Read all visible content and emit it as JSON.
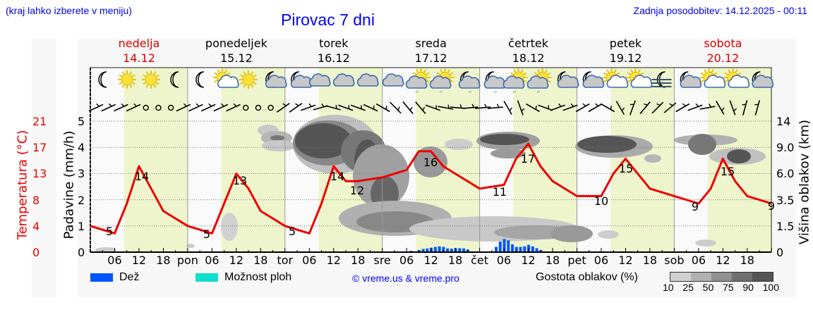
{
  "header": {
    "region_hint": "(kraj lahko izberete v meniju)",
    "title": "Pirovac 7 dni",
    "last_update": "Zadnja posodobitev: 14.12.2025 - 00:11"
  },
  "days": [
    {
      "name": "nedelja",
      "date": "14.12",
      "weekend": true
    },
    {
      "name": "ponedeljek",
      "date": "15.12",
      "weekend": false
    },
    {
      "name": "torek",
      "date": "16.12",
      "weekend": false
    },
    {
      "name": "sreda",
      "date": "17.12",
      "weekend": false
    },
    {
      "name": "četrtek",
      "date": "18.12",
      "weekend": false
    },
    {
      "name": "petek",
      "date": "19.12",
      "weekend": false
    },
    {
      "name": "sobota",
      "date": "20.12",
      "weekend": true
    }
  ],
  "weather_icons": [
    [
      "moon",
      "sun",
      "sun",
      "moon"
    ],
    [
      "moon",
      "sun-cloud",
      "sun",
      "moon-cloud"
    ],
    [
      "moon-cloud",
      "cloud",
      "cloud",
      "cloud"
    ],
    [
      "cloud",
      "sun-cloud-rain",
      "sun-cloud-rain",
      "moon-cloud-rain"
    ],
    [
      "moon-cloud-rain",
      "sun-cloud-rain",
      "sun-cloud-rain",
      "moon-cloud"
    ],
    [
      "moon-cloud",
      "sun-cloud",
      "sun-cloud",
      "moon-fog"
    ],
    [
      "moon-cloud",
      "sun-cloud",
      "sun-cloud",
      "moon-cloud"
    ]
  ],
  "axes": {
    "temp_label": "Temperatura (°C)",
    "temp_ticks": [
      "21",
      "17",
      "13",
      "8",
      "4",
      "0"
    ],
    "precip_label": "Padavine (mm/h)",
    "precip_ticks": [
      "5",
      "4",
      "3",
      "2",
      "1",
      "0"
    ],
    "cloud_label": "Višina oblakov (km)",
    "cloud_ticks": [
      "14",
      "9.0",
      "6.0",
      "3.5",
      "1.5",
      "0"
    ],
    "x_ticks": [
      "06",
      "12",
      "18",
      "pon",
      "06",
      "12",
      "18",
      "tor",
      "06",
      "12",
      "18",
      "sre",
      "06",
      "12",
      "18",
      "čet",
      "06",
      "12",
      "18",
      "pet",
      "06",
      "12",
      "18",
      "sob",
      "06",
      "12",
      "18"
    ]
  },
  "legend": {
    "rain_label": "Dež",
    "rain_color": "#0055ff",
    "shower_label": "Možnost ploh",
    "shower_color": "#11ddcc",
    "copyright": "© vreme.us & vreme.pro",
    "cloud_density_label": "Gostota oblakov (%)",
    "cloud_density_ticks": [
      "10",
      "25",
      "50",
      "75",
      "90",
      "100"
    ],
    "cloud_density_colors": [
      "#d0d0d0",
      "#b0b0b0",
      "#909090",
      "#707070",
      "#555555"
    ]
  },
  "chart_data": {
    "type": "line",
    "title": "Pirovac 7 dni",
    "xlabel": "",
    "ylabel": "Temperatura (°C)",
    "ylabel_right": "Višina oblakov (km)",
    "ylim": [
      0,
      21
    ],
    "grid": true,
    "series": [
      {
        "name": "Temperatura (°C)",
        "color": "#ee0000",
        "points_hour": [
          0,
          6,
          9,
          12,
          15,
          18,
          24,
          30,
          33,
          36,
          39,
          42,
          48,
          54,
          57,
          60,
          63,
          66,
          72,
          78,
          81,
          84,
          87,
          90,
          96,
          102,
          105,
          108,
          111,
          114,
          120,
          126,
          129,
          132,
          135,
          138,
          144,
          150,
          153,
          156,
          159,
          162,
          168
        ],
        "values": [
          6,
          5,
          9,
          14,
          11,
          8,
          6,
          5,
          9,
          13,
          11,
          8,
          6,
          5,
          9,
          14,
          12,
          12,
          12.5,
          13.5,
          16,
          16,
          14,
          13,
          11,
          11.5,
          15,
          17,
          14,
          12,
          10,
          10,
          13,
          15,
          13,
          11,
          10,
          9,
          11,
          15,
          12,
          10,
          9
        ]
      },
      {
        "name": "Padavine (mm/h)",
        "type": "bar",
        "color": "#0055ff",
        "segments": [
          {
            "day": "sreda",
            "from_hour": 6,
            "to_hour": 24,
            "peak_mm": 0.35
          },
          {
            "day": "četrtek",
            "from_hour": 0,
            "to_hour": 15,
            "peak_mm": 0.5
          }
        ]
      }
    ],
    "labels": [
      {
        "text": "5",
        "day": "nedelja",
        "hour": 6
      },
      {
        "text": "14",
        "day": "nedelja",
        "hour": 12
      },
      {
        "text": "5",
        "day": "ponedeljek",
        "hour": 6
      },
      {
        "text": "13",
        "day": "ponedeljek",
        "hour": 12
      },
      {
        "text": "5",
        "day": "torek",
        "hour": 6
      },
      {
        "text": "14",
        "day": "torek",
        "hour": 12
      },
      {
        "text": "12",
        "day": "torek",
        "hour": 18
      },
      {
        "text": "16",
        "day": "sreda",
        "hour": 12
      },
      {
        "text": "11",
        "day": "četrtek",
        "hour": 6
      },
      {
        "text": "17",
        "day": "četrtek",
        "hour": 12
      },
      {
        "text": "10",
        "day": "petek",
        "hour": 6
      },
      {
        "text": "15",
        "day": "petek",
        "hour": 12
      },
      {
        "text": "9",
        "day": "sobota",
        "hour": 6
      },
      {
        "text": "15",
        "day": "sobota",
        "hour": 12
      },
      {
        "text": "9",
        "day": "sobota",
        "hour": 24
      }
    ]
  }
}
